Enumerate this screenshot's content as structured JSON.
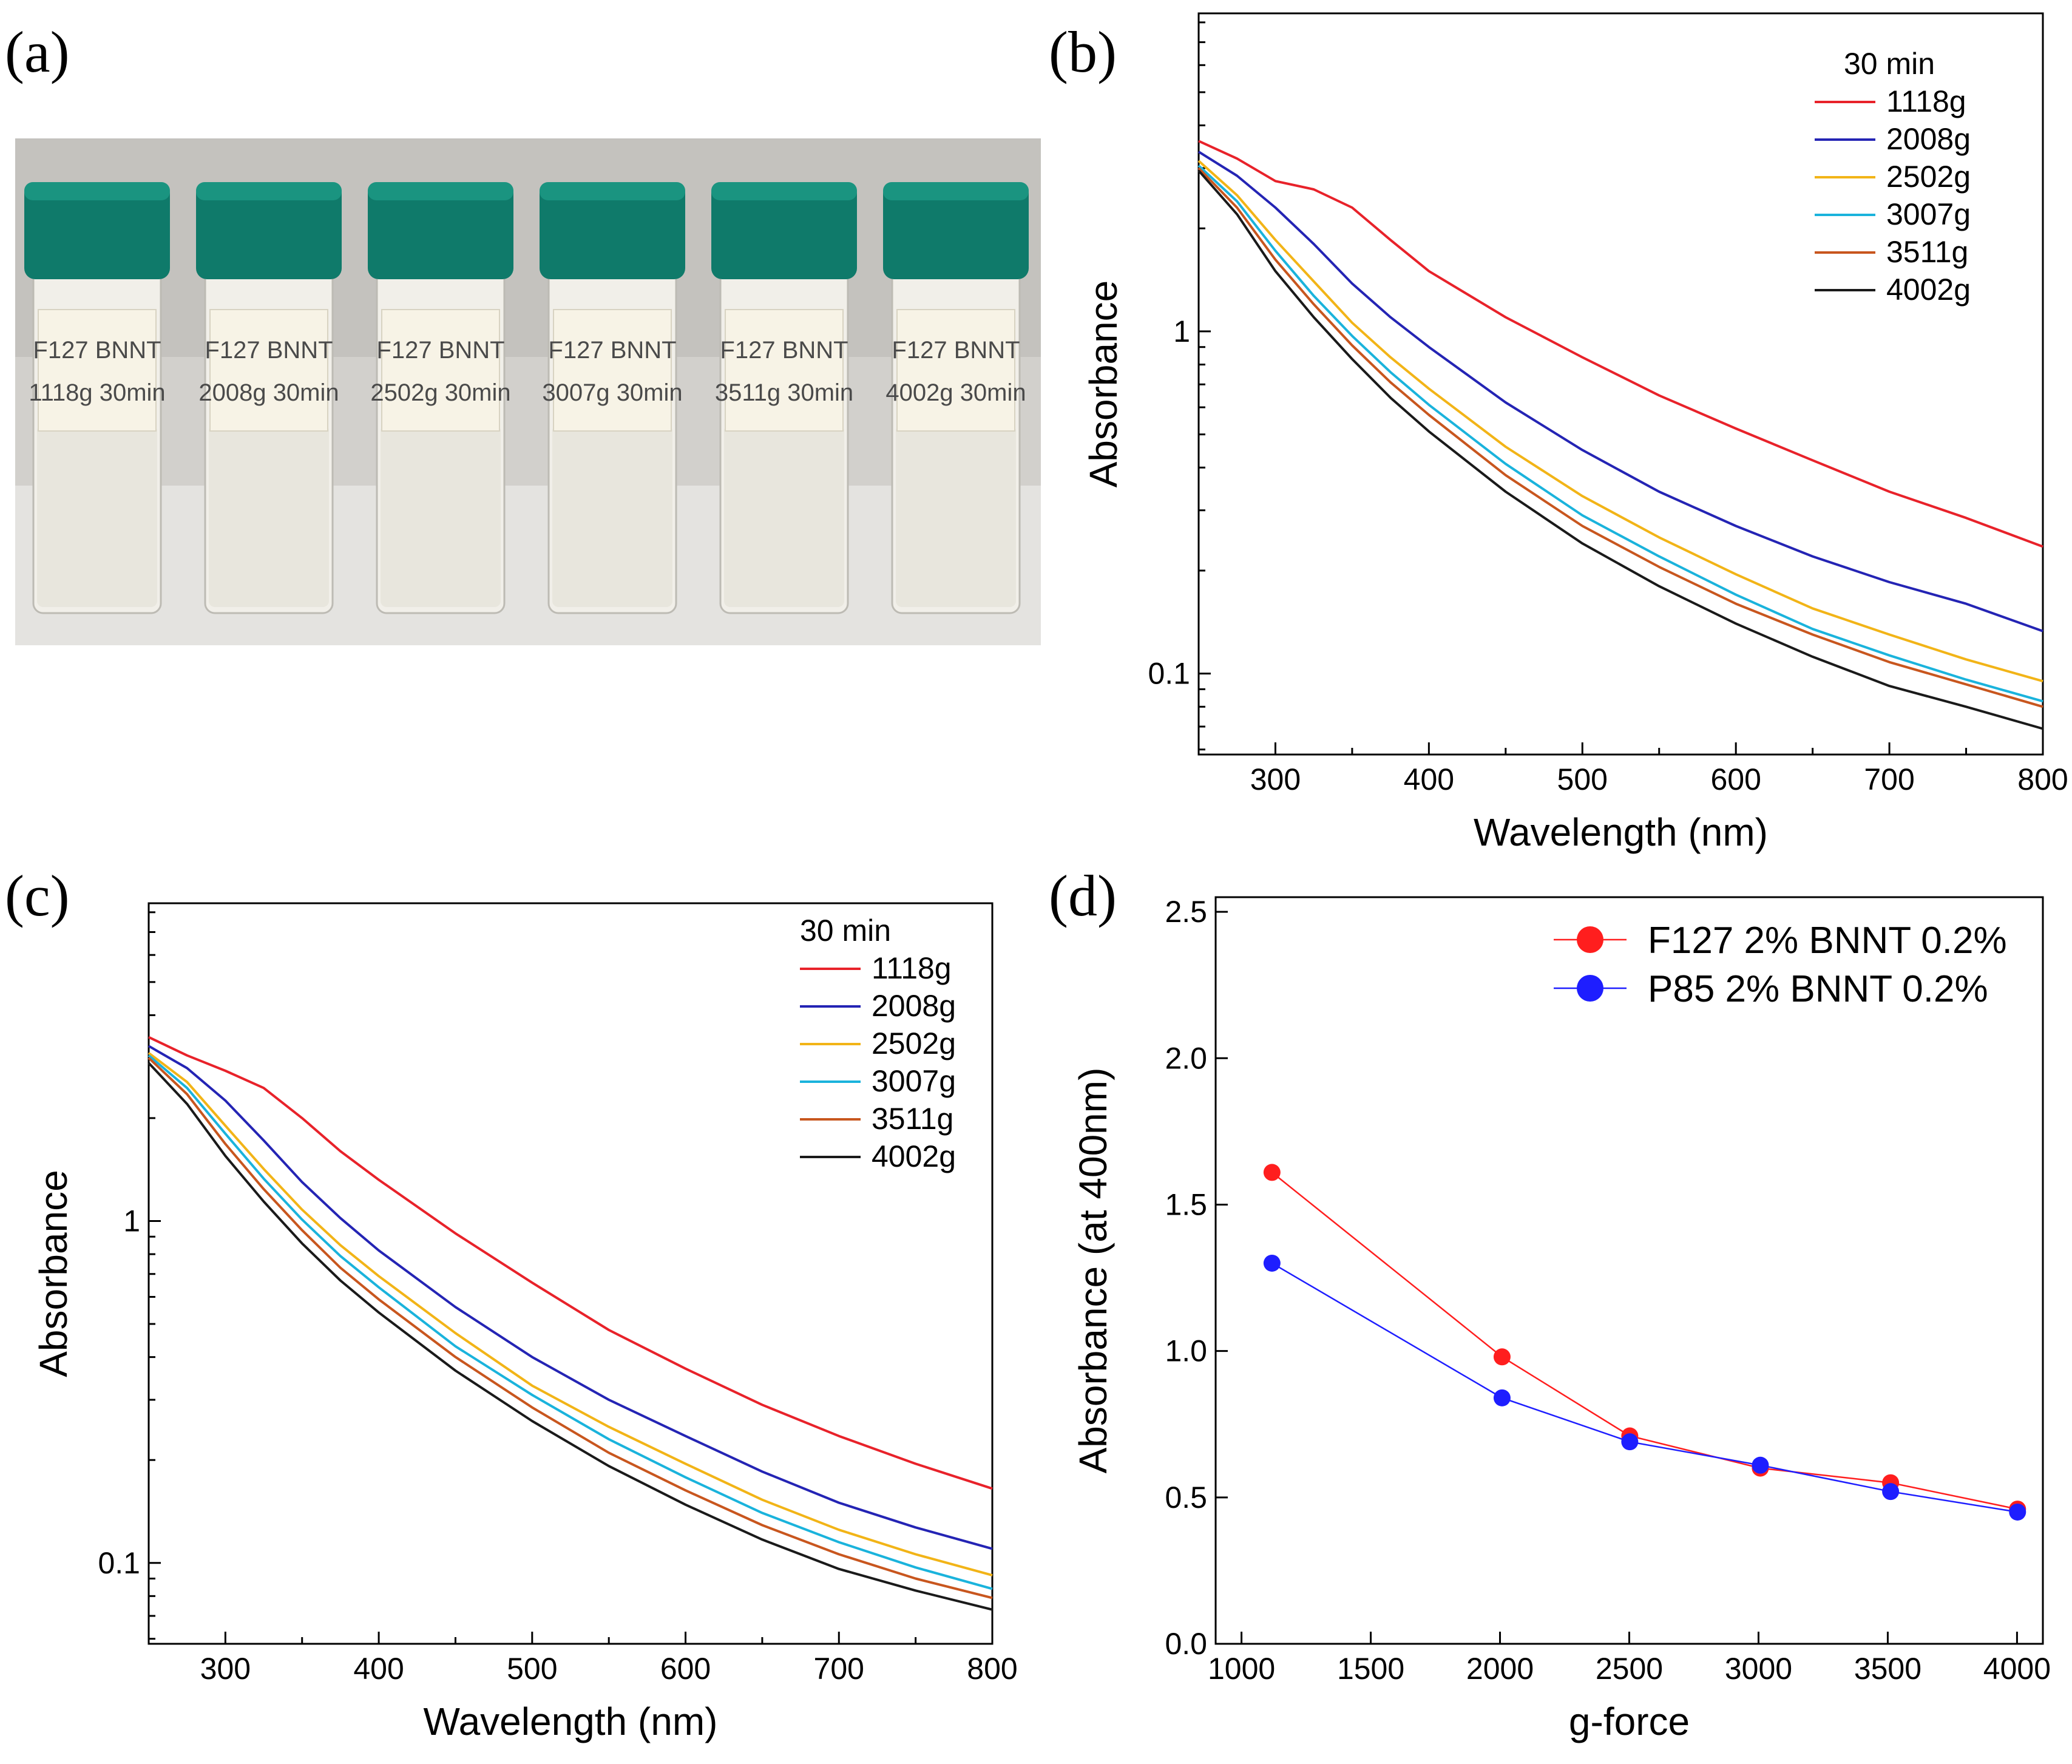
{
  "panel_labels": {
    "a": "(a)",
    "b": "(b)",
    "c": "(c)",
    "d": "(d)"
  },
  "photo": {
    "vials": [
      {
        "label1": "F127 BNNT",
        "label2": "1118g 30min"
      },
      {
        "label1": "F127 BNNT",
        "label2": "2008g 30min"
      },
      {
        "label1": "F127 BNNT",
        "label2": "2502g 30min"
      },
      {
        "label1": "F127 BNNT",
        "label2": "3007g 30min"
      },
      {
        "label1": "F127 BNNT",
        "label2": "3511g 30min"
      },
      {
        "label1": "F127 BNNT",
        "label2": "4002g 30min"
      }
    ],
    "cap_color": "#0f7a6a"
  },
  "chart_data": [
    {
      "panel": "b",
      "type": "line",
      "xlabel": "Wavelength (nm)",
      "ylabel": "Absorbance",
      "yscale": "log",
      "xlim": [
        250,
        800
      ],
      "ylim": [
        0.058,
        8.5
      ],
      "xticks": [
        300,
        400,
        500,
        600,
        700,
        800
      ],
      "yticks": [
        {
          "value": 0.1,
          "label": "0.1"
        },
        {
          "value": 1,
          "label": "1"
        }
      ],
      "legend_title": "30 min",
      "legend_position": "top-right",
      "x": [
        250,
        275,
        300,
        325,
        350,
        375,
        400,
        450,
        500,
        550,
        600,
        650,
        700,
        750,
        800
      ],
      "series": [
        {
          "name": "1118g",
          "color": "#e8222a",
          "values": [
            3.6,
            3.2,
            2.75,
            2.6,
            2.3,
            1.85,
            1.5,
            1.1,
            0.84,
            0.65,
            0.52,
            0.42,
            0.34,
            0.285,
            0.235
          ]
        },
        {
          "name": "2008g",
          "color": "#2424b4",
          "values": [
            3.35,
            2.85,
            2.3,
            1.8,
            1.38,
            1.1,
            0.9,
            0.62,
            0.45,
            0.34,
            0.27,
            0.22,
            0.185,
            0.16,
            0.133
          ]
        },
        {
          "name": "2502g",
          "color": "#f2b417",
          "values": [
            3.15,
            2.5,
            1.85,
            1.4,
            1.06,
            0.84,
            0.68,
            0.46,
            0.33,
            0.25,
            0.195,
            0.155,
            0.13,
            0.11,
            0.095
          ]
        },
        {
          "name": "3007g",
          "color": "#1ab3dc",
          "values": [
            3.05,
            2.4,
            1.72,
            1.27,
            0.97,
            0.76,
            0.61,
            0.41,
            0.29,
            0.22,
            0.17,
            0.135,
            0.113,
            0.096,
            0.083
          ]
        },
        {
          "name": "3511g",
          "color": "#c8561e",
          "values": [
            3.0,
            2.3,
            1.62,
            1.2,
            0.91,
            0.71,
            0.57,
            0.38,
            0.27,
            0.205,
            0.16,
            0.13,
            0.108,
            0.093,
            0.08
          ]
        },
        {
          "name": "4002g",
          "color": "#1a1a1a",
          "values": [
            2.95,
            2.2,
            1.5,
            1.1,
            0.83,
            0.64,
            0.51,
            0.34,
            0.24,
            0.18,
            0.14,
            0.112,
            0.092,
            0.08,
            0.069
          ]
        }
      ]
    },
    {
      "panel": "c",
      "type": "line",
      "xlabel": "Wavelength (nm)",
      "ylabel": "Absorbance",
      "yscale": "log",
      "xlim": [
        250,
        800
      ],
      "ylim": [
        0.058,
        8.5
      ],
      "xticks": [
        300,
        400,
        500,
        600,
        700,
        800
      ],
      "yticks": [
        {
          "value": 0.1,
          "label": "0.1"
        },
        {
          "value": 1,
          "label": "1"
        }
      ],
      "legend_title": "30 min",
      "legend_position": "top-right",
      "x": [
        250,
        275,
        300,
        325,
        350,
        375,
        400,
        450,
        500,
        550,
        600,
        650,
        700,
        750,
        800
      ],
      "series": [
        {
          "name": "1118g",
          "color": "#e8222a",
          "values": [
            3.45,
            3.05,
            2.75,
            2.45,
            2.0,
            1.6,
            1.32,
            0.92,
            0.66,
            0.48,
            0.37,
            0.29,
            0.235,
            0.195,
            0.165
          ]
        },
        {
          "name": "2008g",
          "color": "#2424b4",
          "values": [
            3.25,
            2.8,
            2.25,
            1.72,
            1.3,
            1.02,
            0.82,
            0.56,
            0.4,
            0.3,
            0.235,
            0.185,
            0.15,
            0.127,
            0.11
          ]
        },
        {
          "name": "2502g",
          "color": "#f2b417",
          "values": [
            3.1,
            2.55,
            1.9,
            1.42,
            1.08,
            0.85,
            0.69,
            0.47,
            0.33,
            0.25,
            0.195,
            0.153,
            0.125,
            0.106,
            0.092
          ]
        },
        {
          "name": "3007g",
          "color": "#1ab3dc",
          "values": [
            3.05,
            2.45,
            1.8,
            1.33,
            1.01,
            0.79,
            0.64,
            0.43,
            0.31,
            0.23,
            0.178,
            0.14,
            0.115,
            0.097,
            0.084
          ]
        },
        {
          "name": "3511g",
          "color": "#c8561e",
          "values": [
            3.0,
            2.35,
            1.68,
            1.24,
            0.94,
            0.73,
            0.59,
            0.4,
            0.285,
            0.21,
            0.163,
            0.129,
            0.106,
            0.09,
            0.079
          ]
        },
        {
          "name": "4002g",
          "color": "#1a1a1a",
          "values": [
            2.9,
            2.2,
            1.55,
            1.14,
            0.86,
            0.67,
            0.54,
            0.365,
            0.26,
            0.192,
            0.148,
            0.117,
            0.096,
            0.083,
            0.073
          ]
        }
      ]
    },
    {
      "panel": "d",
      "type": "line",
      "xlabel": "g-force",
      "ylabel": "Absorbance (at 400nm)",
      "xlim": [
        900,
        4100
      ],
      "ylim": [
        0,
        2.55
      ],
      "xticks": [
        1000,
        1500,
        2000,
        2500,
        3000,
        3500,
        4000
      ],
      "yticks": [
        {
          "value": 0,
          "label": "0.0"
        },
        {
          "value": 0.5,
          "label": "0.5"
        },
        {
          "value": 1.0,
          "label": "1.0"
        },
        {
          "value": 1.5,
          "label": "1.5"
        },
        {
          "value": 2.0,
          "label": "2.0"
        },
        {
          "value": 2.5,
          "label": "2.5"
        }
      ],
      "legend_position": "top-right",
      "x": [
        1118,
        2008,
        2502,
        3007,
        3511,
        4002
      ],
      "series": [
        {
          "name": "F127 2% BNNT 0.2%",
          "color": "#ff1e1e",
          "values": [
            1.61,
            0.98,
            0.71,
            0.6,
            0.55,
            0.46
          ]
        },
        {
          "name": "P85 2% BNNT 0.2%",
          "color": "#1e1eff",
          "values": [
            1.3,
            0.84,
            0.69,
            0.61,
            0.52,
            0.45
          ]
        }
      ]
    }
  ]
}
